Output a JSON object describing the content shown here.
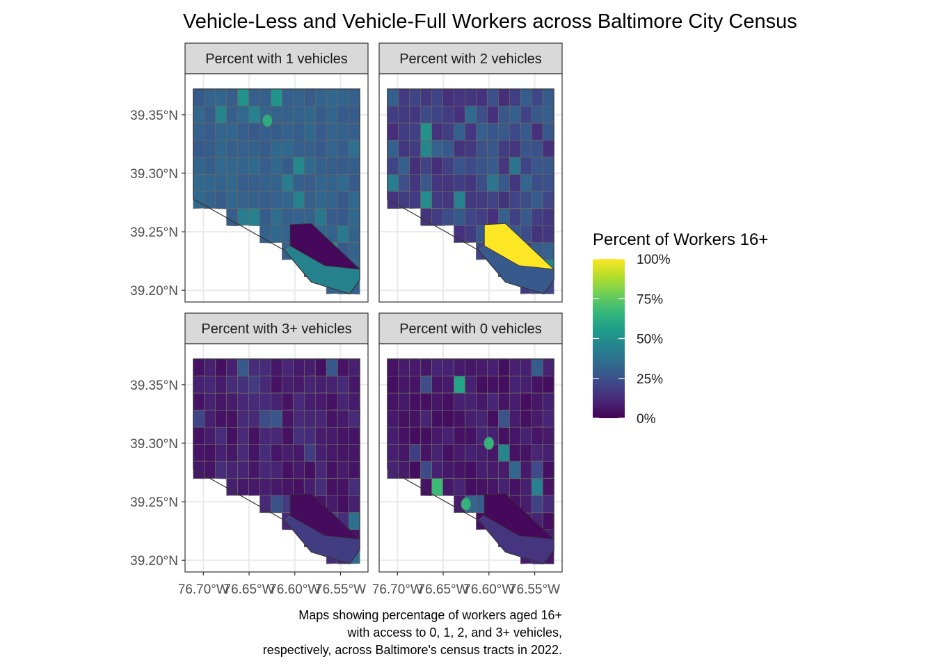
{
  "chart_data": {
    "type": "choropleth-map",
    "title": "Vehicle-Less and Vehicle-Full Workers across Baltimore City Census",
    "caption": [
      "Maps showing percentage of workers aged 16+",
      "with access to 0, 1, 2, and 3+ vehicles,",
      "respectively, across Baltimore's census tracts in 2022."
    ],
    "facets": [
      {
        "label": "Percent with 1 vehicles",
        "base_value": 32,
        "highlight_value": 62,
        "dark_value": 2,
        "southeast_value": 45,
        "typical_range": [
          25,
          55
        ]
      },
      {
        "label": "Percent with 2 vehicles",
        "base_value": 25,
        "highlight_value": 100,
        "dark_value": 3,
        "southeast_value": 28,
        "typical_range": [
          5,
          60
        ]
      },
      {
        "label": "Percent with 3+ vehicles",
        "base_value": 10,
        "highlight_value": 45,
        "dark_value": 3,
        "southeast_value": 18,
        "typical_range": [
          0,
          40
        ]
      },
      {
        "label": "Percent with 0 vehicles",
        "base_value": 8,
        "highlight_value": 65,
        "dark_value": 2,
        "southeast_value": 15,
        "typical_range": [
          0,
          70
        ]
      }
    ],
    "x_axis": {
      "ticks": [
        -76.7,
        -76.65,
        -76.6,
        -76.55
      ],
      "tick_labels": [
        "76.70°W",
        "76.65°W",
        "76.60°W",
        "76.55°W"
      ],
      "range": [
        -76.72,
        -76.52
      ]
    },
    "y_axis": {
      "ticks": [
        39.2,
        39.25,
        39.3,
        39.35
      ],
      "tick_labels": [
        "39.20°N",
        "39.25°N",
        "39.30°N",
        "39.35°N"
      ],
      "range": [
        39.19,
        39.385
      ]
    },
    "legend": {
      "title": "Percent of Workers 16+",
      "placement": "right",
      "colormap": "viridis",
      "range": [
        0,
        100
      ],
      "breaks": [
        0,
        25,
        50,
        75,
        100
      ],
      "labels": [
        "0%",
        "25%",
        "50%",
        "75%",
        "100%"
      ]
    },
    "grid": true,
    "colors": {
      "strip_fill": "#d9d9d9",
      "tract_border": "#666666",
      "grid": "#ebebeb",
      "viridis": [
        "#440154",
        "#482878",
        "#3e4989",
        "#31688e",
        "#26828e",
        "#1f9e89",
        "#35b779",
        "#6ece58",
        "#b5de2b",
        "#fde725"
      ]
    }
  }
}
